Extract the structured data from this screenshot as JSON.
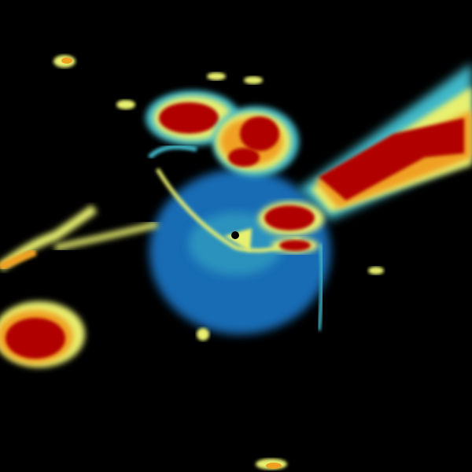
{
  "radar": {
    "product": "reflectivity",
    "background": "#000000",
    "palette": {
      "weak": "#1a7fd4",
      "light": "#3fb8c8",
      "moderate": "#e8f070",
      "heavy": "#f0a020",
      "intense": "#b00000"
    },
    "site_marker_color": "#000000"
  }
}
